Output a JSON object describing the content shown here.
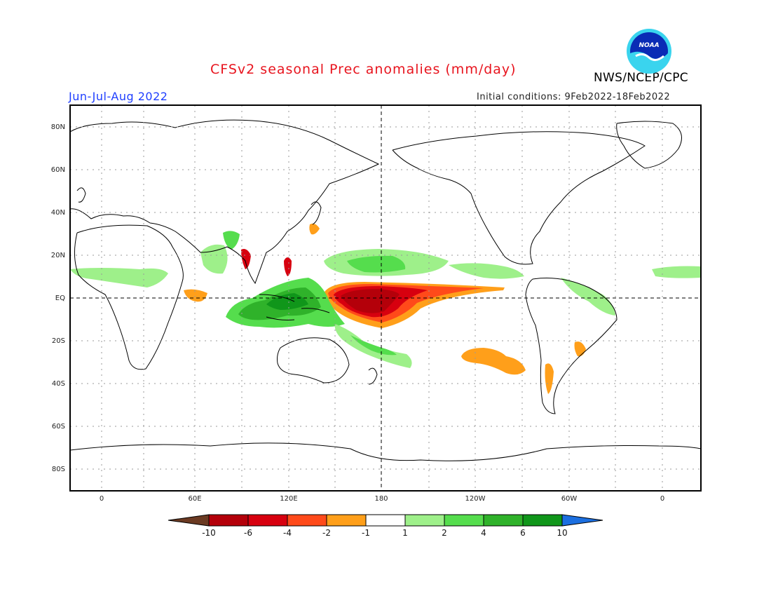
{
  "header": {
    "title": "CFSv2 seasonal Prec anomalies (mm/day)",
    "season": "Jun-Jul-Aug 2022",
    "initial_conditions": "Initial conditions: 9Feb2022-18Feb2022",
    "org": "NWS/NCEP/CPC",
    "logo_text": "NOAA"
  },
  "map": {
    "lat_labels": [
      "80N",
      "60N",
      "40N",
      "20N",
      "EQ",
      "20S",
      "40S",
      "60S",
      "80S"
    ],
    "lon_labels": [
      "0",
      "60E",
      "120E",
      "180",
      "120W",
      "60W",
      "0"
    ]
  },
  "colorbar": {
    "labels": [
      "-10",
      "-6",
      "-4",
      "-2",
      "-1",
      "1",
      "2",
      "4",
      "6",
      "10"
    ],
    "colors": [
      "#6b3a22",
      "#b4000a",
      "#d7000f",
      "#ff4a1a",
      "#ff9f1a",
      "#ffffff",
      "#9ef08a",
      "#55dd4d",
      "#2fb22a",
      "#10961a",
      "#1c6fe0"
    ]
  },
  "colors": {
    "title": "#e8141e",
    "season": "#1f3fff"
  }
}
